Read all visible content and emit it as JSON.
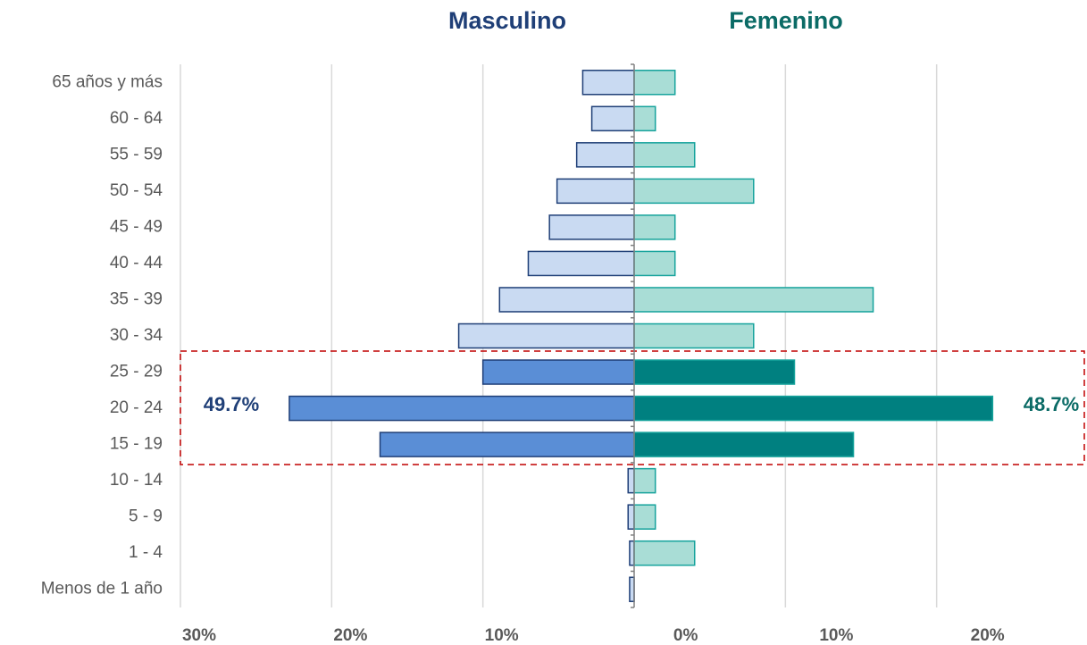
{
  "chart_data": {
    "type": "pyramid",
    "categories": [
      "65 años y más",
      "60 - 64",
      "55 - 59",
      "50 - 54",
      "45 - 49",
      "40 - 44",
      "35 - 39",
      "30 - 34",
      "25 - 29",
      "20 - 24",
      "15 - 19",
      "10 - 14",
      "5 - 9",
      "1 - 4",
      "Menos de 1 año"
    ],
    "series": [
      {
        "name": "Masculino",
        "side": "left",
        "color": "#1f3f77",
        "colors": [
          "#c9daf2",
          "#c9daf2",
          "#c9daf2",
          "#c9daf2",
          "#c9daf2",
          "#c9daf2",
          "#c9daf2",
          "#c9daf2",
          "#5a8ed6",
          "#5a8ed6",
          "#5a8ed6",
          "#c9daf2",
          "#c9daf2",
          "#c9daf2",
          "#c9daf2"
        ],
        "values": [
          3.4,
          2.8,
          3.8,
          5.1,
          5.6,
          7.0,
          8.9,
          11.6,
          10.0,
          22.8,
          16.8,
          0.4,
          0.4,
          0.3,
          0.3
        ]
      },
      {
        "name": "Femenino",
        "side": "right",
        "color": "#16a39c",
        "colors": [
          "#a9ddd6",
          "#a9ddd6",
          "#a9ddd6",
          "#a9ddd6",
          "#a9ddd6",
          "#a9ddd6",
          "#a9ddd6",
          "#a9ddd6",
          "#008080",
          "#008080",
          "#008080",
          "#a9ddd6",
          "#a9ddd6",
          "#a9ddd6",
          "#a9ddd6"
        ],
        "values": [
          2.7,
          1.4,
          4.0,
          7.9,
          2.7,
          2.7,
          15.8,
          7.9,
          10.6,
          23.7,
          14.5,
          1.4,
          1.4,
          4.0,
          0
        ]
      }
    ],
    "annotations": [
      {
        "value": 49.7,
        "label": "49.7%",
        "color": "#1f3f77"
      },
      {
        "value": 48.7,
        "label": "48.7%",
        "color": "#0b6b66"
      }
    ],
    "xlim": [
      -30,
      30
    ],
    "xticks": [
      {
        "value": -30,
        "label": "30%"
      },
      {
        "value": -20,
        "label": "20%"
      },
      {
        "value": -10,
        "label": "10%"
      },
      {
        "value": 0,
        "label": "0%"
      },
      {
        "value": 10,
        "label": "10%"
      },
      {
        "value": 20,
        "label": "20%"
      }
    ],
    "grid": true
  }
}
